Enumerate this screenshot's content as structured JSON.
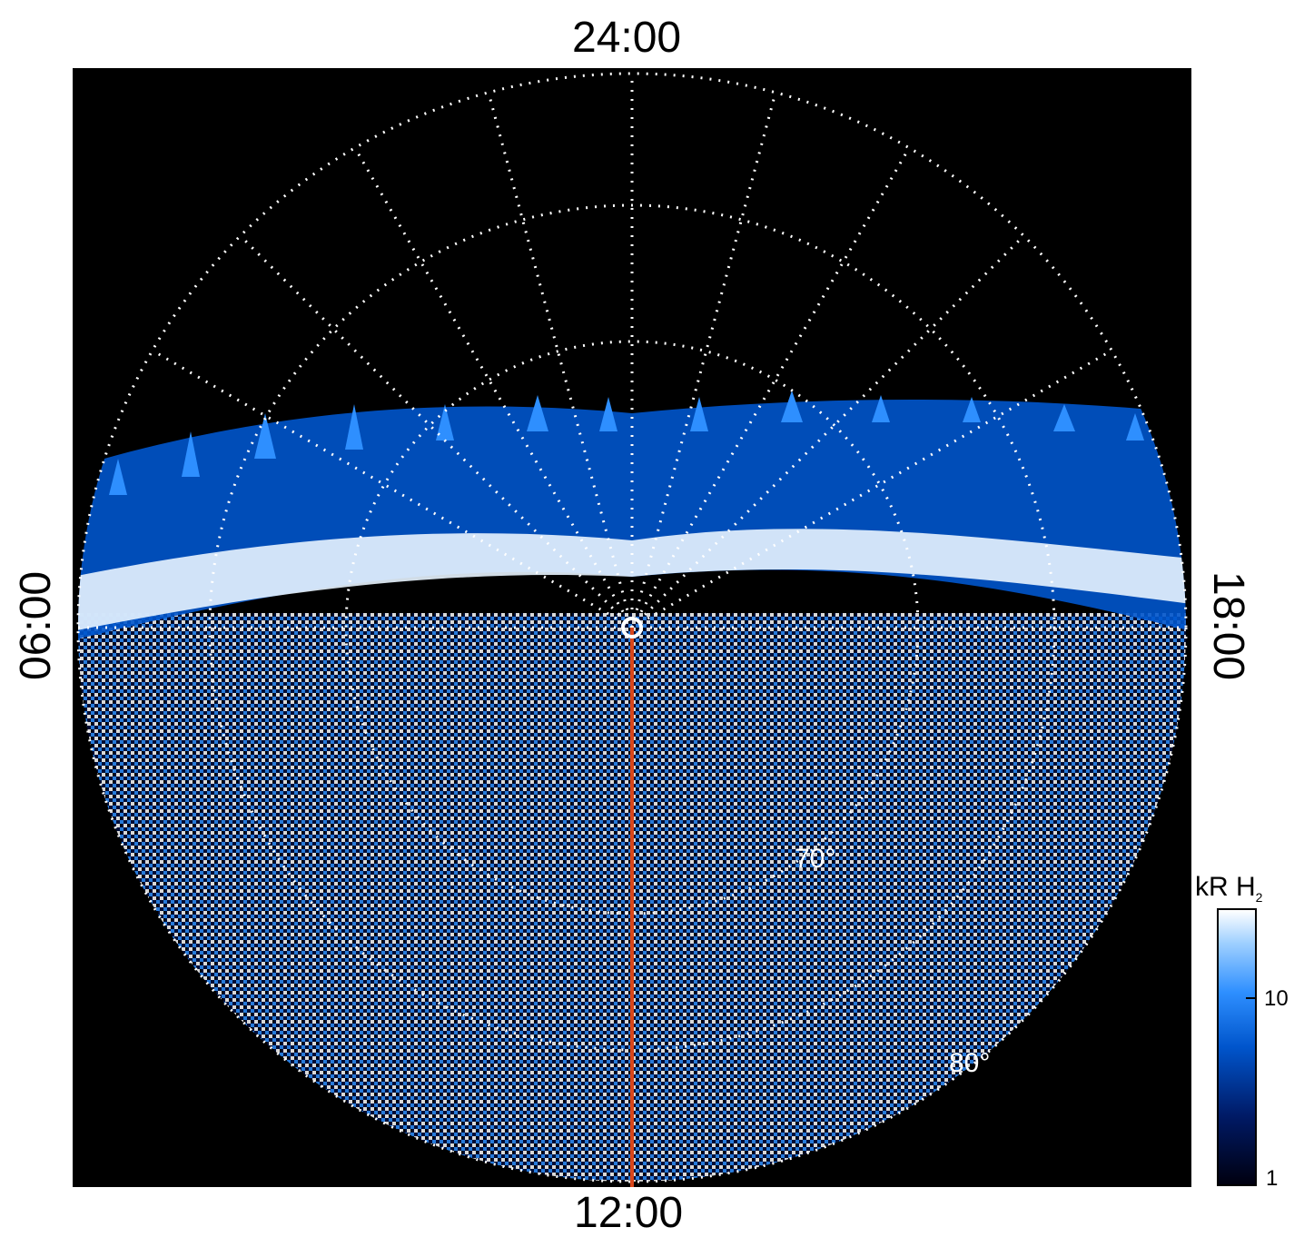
{
  "labels": {
    "top": "24:00",
    "bottom": "12:00",
    "left": "06:00",
    "right": "18:00",
    "lat_70": "70°",
    "lat_80": "80°"
  },
  "colorbar": {
    "title": "kR H",
    "title_sub": "2",
    "tick_10": "10",
    "tick_1": "1"
  },
  "colors": {
    "background": "#000000",
    "grid": "#ffffff",
    "meridian_line": "#d9461a",
    "emission_bright": "#ffffff",
    "emission_mid": "#2e8fff",
    "emission_dark": "#001a66"
  }
}
